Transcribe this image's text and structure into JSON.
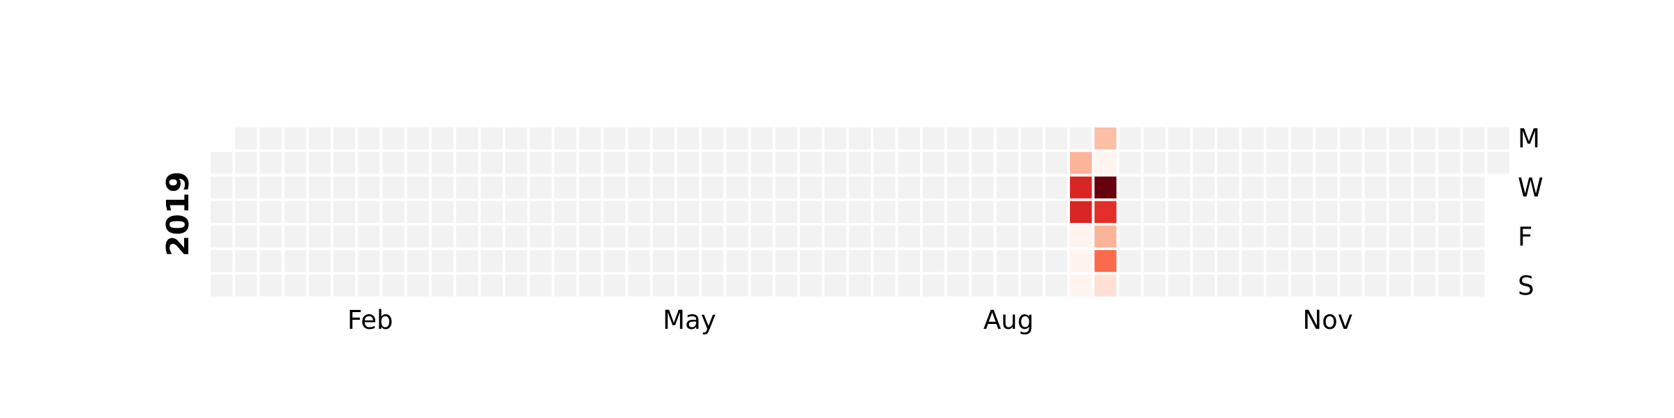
{
  "chart_data": {
    "type": "heatmap",
    "title": "",
    "xlabel": "",
    "ylabel": "",
    "year": "2019",
    "month_labels": [
      {
        "label": "Feb",
        "week": 6.5
      },
      {
        "label": "May",
        "week": 19.5
      },
      {
        "label": "Aug",
        "week": 32.5
      },
      {
        "label": "Nov",
        "week": 45.5
      }
    ],
    "day_labels": [
      {
        "label": "M",
        "day": 0
      },
      {
        "label": "W",
        "day": 2
      },
      {
        "label": "F",
        "day": 4
      },
      {
        "label": "S",
        "day": 6
      }
    ],
    "weeks": 53,
    "start_weekday": 1,
    "days_in_year": 365,
    "empty_color": "#f2f2f2",
    "colormap": "Reds",
    "color_scale": [
      {
        "level": 0.05,
        "color": "#fff4ee"
      },
      {
        "level": 0.15,
        "color": "#fee1d4"
      },
      {
        "level": 0.3,
        "color": "#fcbea5"
      },
      {
        "level": 0.35,
        "color": "#fcb499"
      },
      {
        "level": 0.6,
        "color": "#fb6a4a"
      },
      {
        "level": 0.8,
        "color": "#e32f27"
      },
      {
        "level": 0.85,
        "color": "#d92523"
      },
      {
        "level": 1.0,
        "color": "#67000d"
      }
    ],
    "values": [
      {
        "week": 35,
        "day": 1,
        "level": 0.35
      },
      {
        "week": 35,
        "day": 2,
        "level": 0.85
      },
      {
        "week": 35,
        "day": 3,
        "level": 0.85
      },
      {
        "week": 35,
        "day": 4,
        "level": 0.05
      },
      {
        "week": 35,
        "day": 5,
        "level": 0.05
      },
      {
        "week": 35,
        "day": 6,
        "level": 0.05
      },
      {
        "week": 36,
        "day": 0,
        "level": 0.3
      },
      {
        "week": 36,
        "day": 1,
        "level": 0.05
      },
      {
        "week": 36,
        "day": 2,
        "level": 1.0
      },
      {
        "week": 36,
        "day": 3,
        "level": 0.8
      },
      {
        "week": 36,
        "day": 4,
        "level": 0.35
      },
      {
        "week": 36,
        "day": 5,
        "level": 0.6
      },
      {
        "week": 36,
        "day": 6,
        "level": 0.15
      }
    ]
  }
}
